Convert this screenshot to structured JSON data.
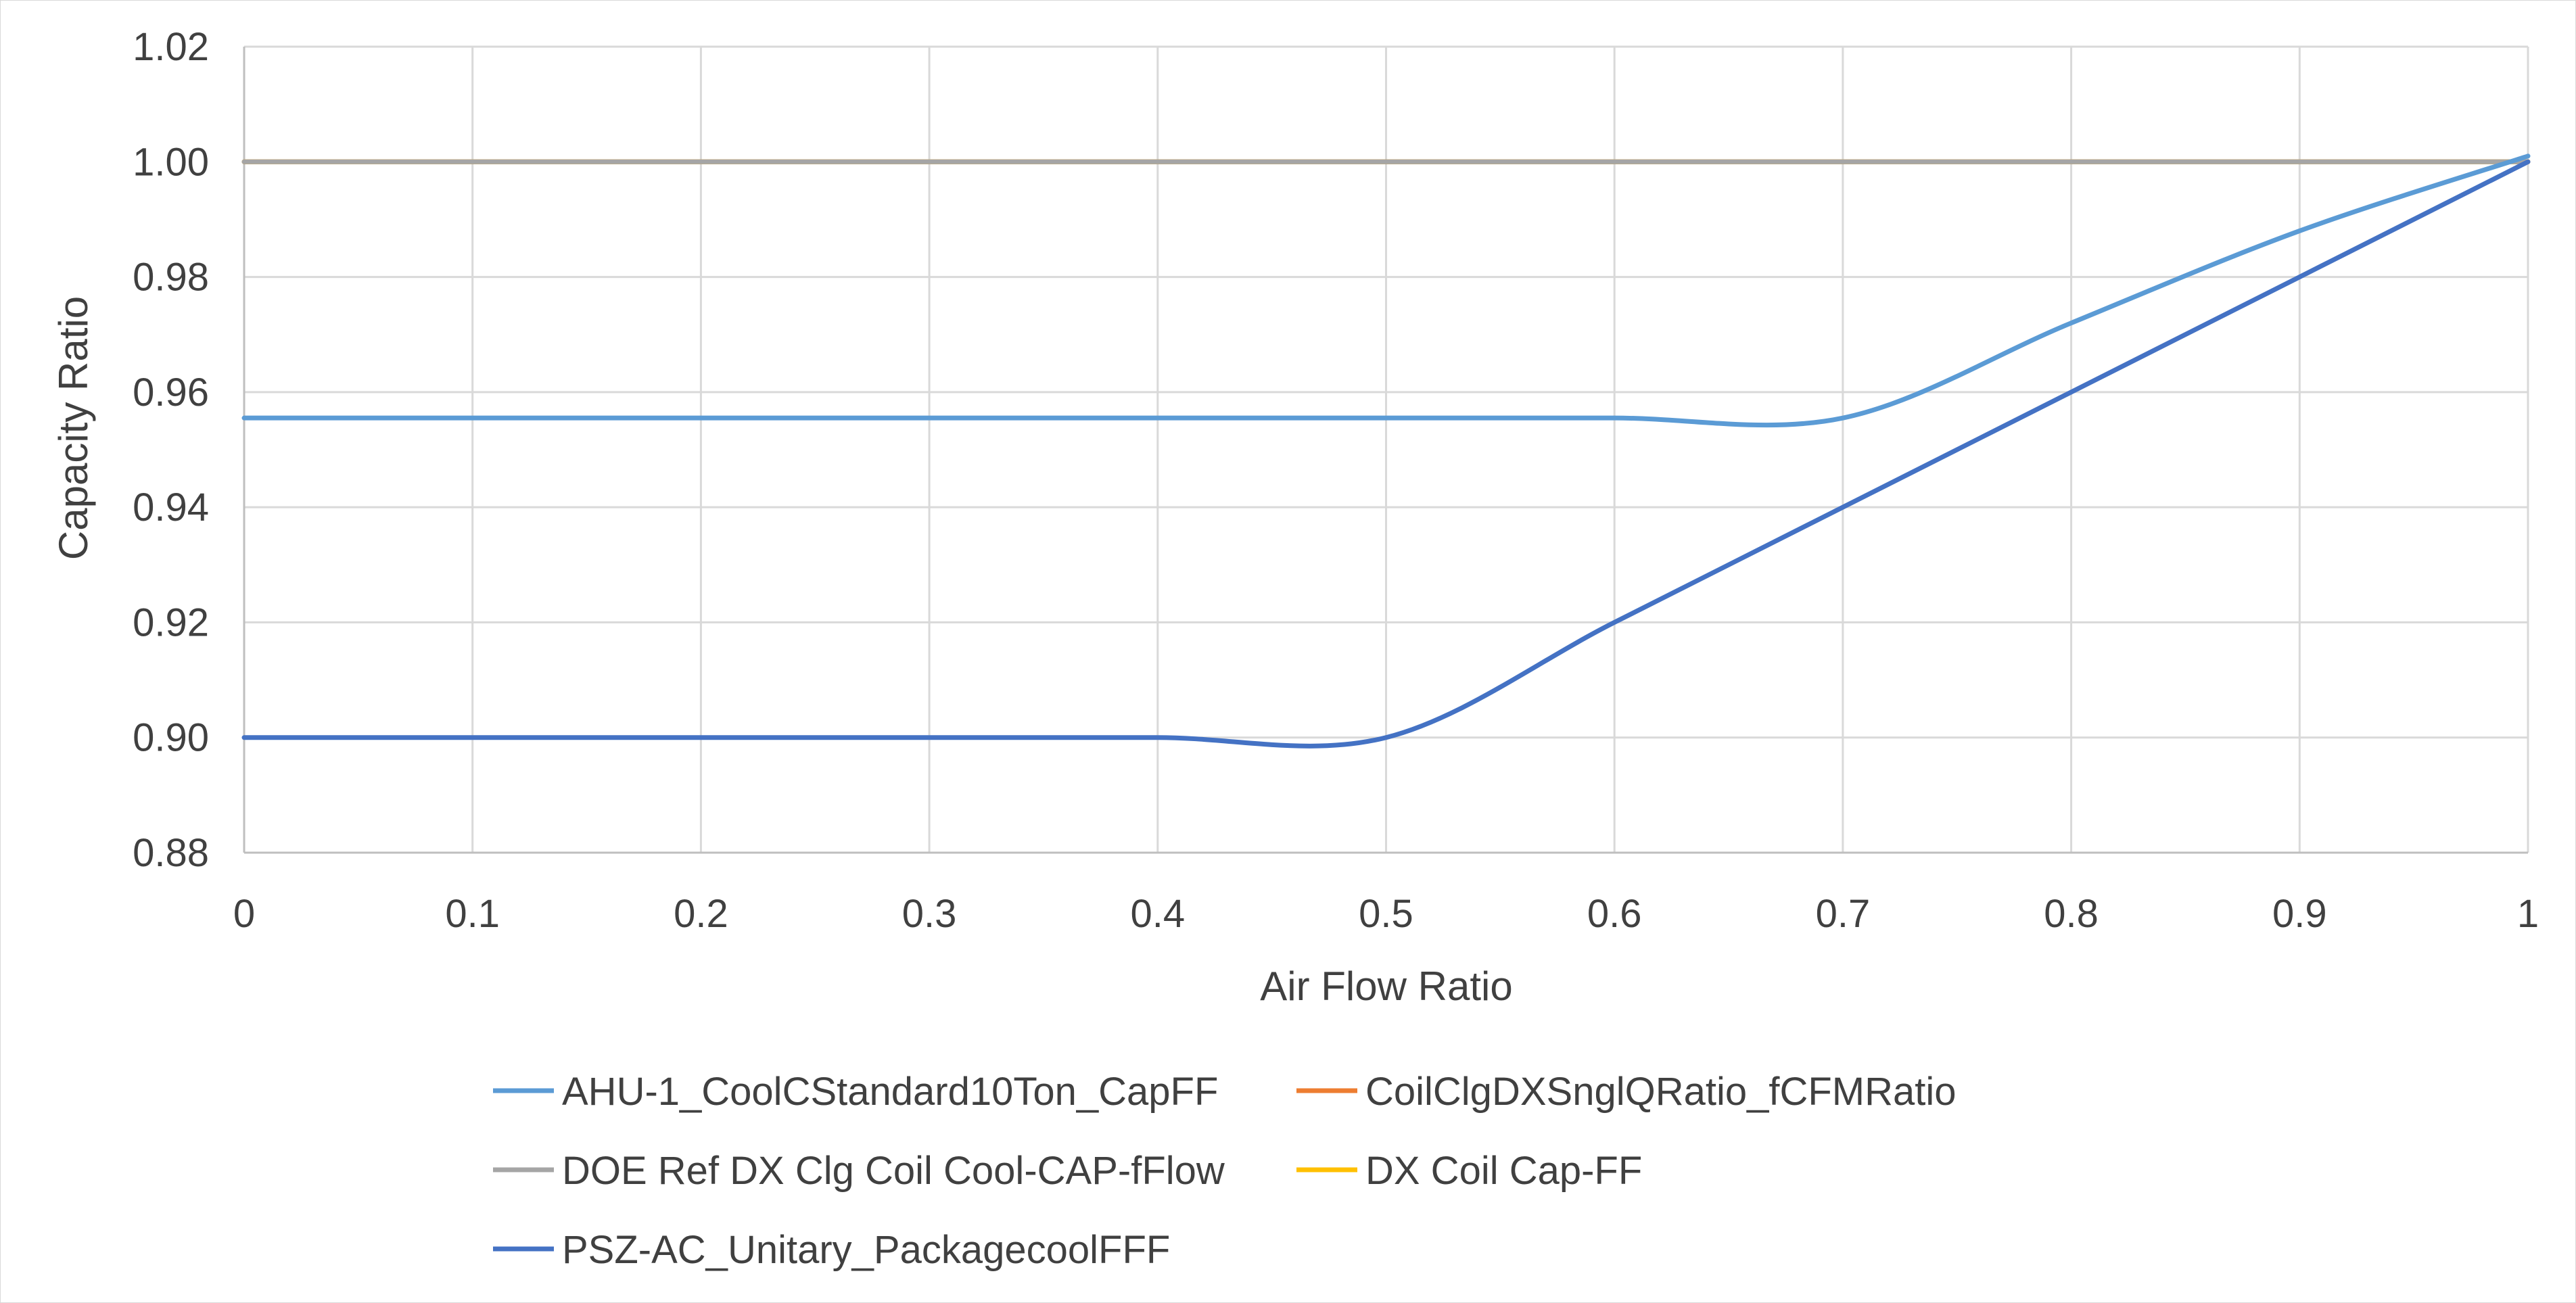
{
  "chart_data": {
    "type": "line",
    "title": "",
    "xlabel": "Air Flow Ratio",
    "ylabel": "Capacity Ratio",
    "xlim": [
      0,
      1
    ],
    "ylim": [
      0.88,
      1.02
    ],
    "x_ticks": [
      "0",
      "0.1",
      "0.2",
      "0.3",
      "0.4",
      "0.5",
      "0.6",
      "0.7",
      "0.8",
      "0.9",
      "1"
    ],
    "x_tick_values": [
      0,
      0.1,
      0.2,
      0.3,
      0.4,
      0.5,
      0.6,
      0.7,
      0.8,
      0.9,
      1
    ],
    "y_ticks": [
      "0.88",
      "0.90",
      "0.92",
      "0.94",
      "0.96",
      "0.98",
      "1.00",
      "1.02"
    ],
    "y_tick_values": [
      0.88,
      0.9,
      0.92,
      0.94,
      0.96,
      0.98,
      1.0,
      1.02
    ],
    "grid": true,
    "legend_position": "bottom",
    "series": [
      {
        "name": "AHU-1_CoolCStandard10Ton_CapFF",
        "color": "#5B9BD5",
        "x": [
          0,
          0.1,
          0.2,
          0.3,
          0.4,
          0.5,
          0.6,
          0.7,
          0.8,
          0.9,
          1
        ],
        "values": [
          0.9555,
          0.9555,
          0.9555,
          0.9555,
          0.9555,
          0.9555,
          0.9555,
          0.9555,
          0.972,
          0.988,
          1.001
        ]
      },
      {
        "name": "CoilClgDXSnglQRatio_fCFMRatio",
        "color": "#ED7D31",
        "x": [
          0,
          0.1,
          0.2,
          0.3,
          0.4,
          0.5,
          0.6,
          0.7,
          0.8,
          0.9,
          1
        ],
        "values": [
          1.0,
          1.0,
          1.0,
          1.0,
          1.0,
          1.0,
          1.0,
          1.0,
          1.0,
          1.0,
          1.0
        ]
      },
      {
        "name": "DOE Ref DX Clg Coil Cool-CAP-fFlow",
        "color": "#A5A5A5",
        "x": [
          0,
          0.1,
          0.2,
          0.3,
          0.4,
          0.5,
          0.6,
          0.7,
          0.8,
          0.9,
          1
        ],
        "values": [
          1.0,
          1.0,
          1.0,
          1.0,
          1.0,
          1.0,
          1.0,
          1.0,
          1.0,
          1.0,
          1.0
        ]
      },
      {
        "name": "DX Coil Cap-FF",
        "color": "#FFC000",
        "x": [
          0,
          0.1,
          0.2,
          0.3,
          0.4,
          0.5,
          0.6,
          0.7,
          0.8,
          0.9,
          1
        ],
        "values": [
          1.0,
          1.0,
          1.0,
          1.0,
          1.0,
          1.0,
          1.0,
          1.0,
          1.0,
          1.0,
          1.0
        ]
      },
      {
        "name": "PSZ-AC_Unitary_PackagecoolFFF",
        "color": "#4472C4",
        "x": [
          0,
          0.1,
          0.2,
          0.3,
          0.4,
          0.5,
          0.6,
          0.7,
          0.8,
          0.9,
          1
        ],
        "values": [
          0.9,
          0.9,
          0.9,
          0.9,
          0.9,
          0.9,
          0.92,
          0.94,
          0.96,
          0.98,
          1.0
        ]
      }
    ]
  }
}
